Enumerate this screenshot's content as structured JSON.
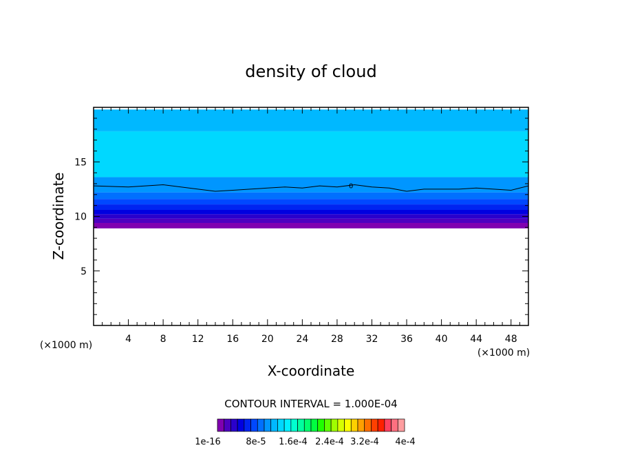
{
  "chart_data": {
    "type": "contour",
    "title": "density of cloud",
    "xlabel": "X-coordinate",
    "ylabel": "Z-coordinate",
    "x_unit": "(×1000 m)",
    "z_unit": "(×1000 m)",
    "xlim": [
      0,
      50
    ],
    "ylim": [
      0,
      20
    ],
    "xticks": [
      4,
      8,
      12,
      16,
      20,
      24,
      28,
      32,
      36,
      40,
      44,
      48
    ],
    "yticks": [
      5,
      10,
      15
    ],
    "contour_interval_text": "CONTOUR INTERVAL = 1.000E-04",
    "contour_label": "0",
    "legend": {
      "placement": "bottom",
      "labels": [
        "1e-16",
        "8e-5",
        "1.6e-4",
        "2.4e-4",
        "3.2e-4",
        "4e-4"
      ],
      "colors": [
        "#8000b0",
        "#4d00c0",
        "#2a00cc",
        "#0000e0",
        "#0024f0",
        "#0048ff",
        "#0070ff",
        "#0096ff",
        "#00b8ff",
        "#00d8ff",
        "#00f0ff",
        "#00ffd0",
        "#00ffa0",
        "#00ff70",
        "#00ff40",
        "#20ff00",
        "#60ff00",
        "#a0ff00",
        "#d8ff00",
        "#ffff00",
        "#ffd000",
        "#ffa000",
        "#ff7000",
        "#ff4000",
        "#ff2000",
        "#ff4060",
        "#ff7080",
        "#ff9ea0"
      ]
    },
    "cloud_field": {
      "cloud_base_z": 8.9,
      "cloud_top_z": 19.8,
      "bands": [
        {
          "z_bottom": 8.9,
          "z_top": 9.4,
          "color": "#8000b0"
        },
        {
          "z_bottom": 9.4,
          "z_top": 9.8,
          "color": "#4d00c0"
        },
        {
          "z_bottom": 9.8,
          "z_top": 10.2,
          "color": "#2a00cc"
        },
        {
          "z_bottom": 10.2,
          "z_top": 10.6,
          "color": "#0000e0"
        },
        {
          "z_bottom": 10.6,
          "z_top": 11.1,
          "color": "#0024f0"
        },
        {
          "z_bottom": 11.1,
          "z_top": 11.6,
          "color": "#0048ff"
        },
        {
          "z_bottom": 11.6,
          "z_top": 12.2,
          "color": "#0070ff"
        },
        {
          "z_bottom": 12.2,
          "z_top": 13.6,
          "color": "#0096ff"
        },
        {
          "z_bottom": 13.6,
          "z_top": 17.8,
          "color": "#00d8ff"
        },
        {
          "z_bottom": 17.8,
          "z_top": 19.8,
          "color": "#00b8ff"
        }
      ],
      "contour_line": {
        "x": [
          0,
          4,
          8,
          12,
          14,
          16,
          18,
          20,
          22,
          24,
          26,
          28,
          30,
          32,
          34,
          36,
          38,
          40,
          42,
          44,
          46,
          48,
          50
        ],
        "z": [
          12.8,
          12.7,
          12.9,
          12.5,
          12.3,
          12.4,
          12.5,
          12.6,
          12.7,
          12.6,
          12.8,
          12.7,
          12.9,
          12.7,
          12.6,
          12.3,
          12.5,
          12.5,
          12.5,
          12.6,
          12.5,
          12.4,
          12.8
        ]
      }
    }
  }
}
